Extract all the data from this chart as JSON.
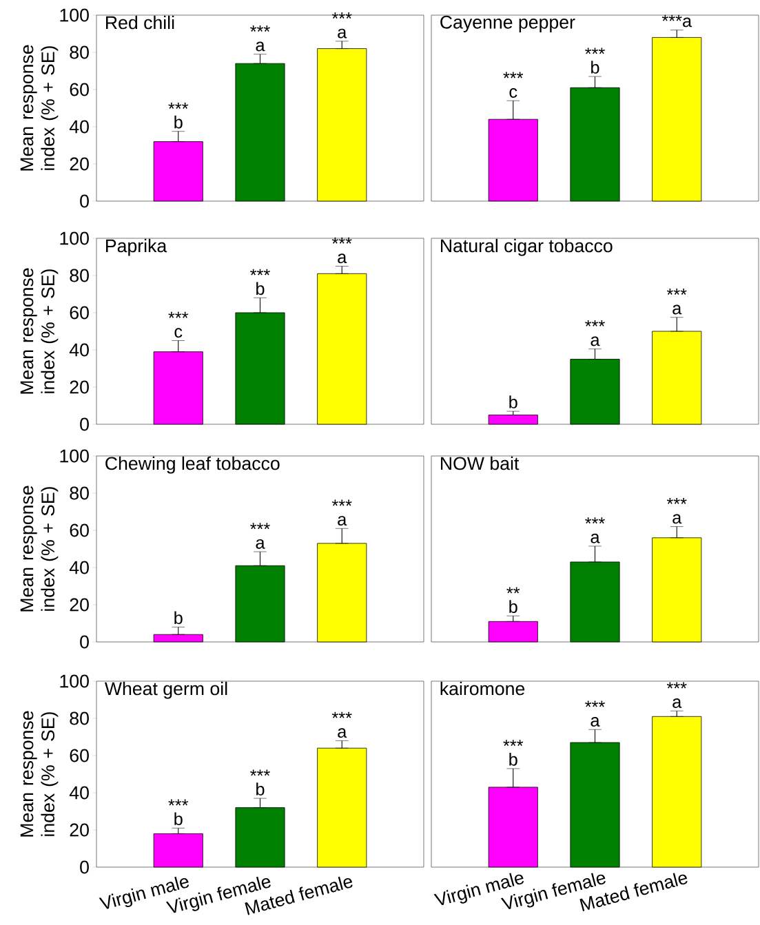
{
  "chart_data": [
    {
      "type": "bar",
      "title": "Red chili",
      "ylabel": "Mean response index (% + SE)",
      "categories": [
        "Virgin male",
        "Virgin female",
        "Mated female"
      ],
      "values": [
        32,
        74,
        82
      ],
      "colors": [
        "#ff00ff",
        "#008000",
        "#ffff00"
      ],
      "errors": [
        [
          32,
          37.5
        ],
        [
          74,
          79
        ],
        [
          82,
          86
        ]
      ],
      "ylim": [
        0,
        100
      ],
      "yticks": [
        0,
        20,
        40,
        60,
        80,
        100
      ],
      "tick_labels": "y",
      "annotations": [
        {
          "text": "b",
          "x": "Virgin male",
          "y": 37.5
        },
        {
          "text": "***",
          "x": "Virgin male",
          "y": 37.5
        },
        {
          "text": "a",
          "x": "Virgin female",
          "y": 79
        },
        {
          "text": "***",
          "x": "Virgin female",
          "y": 79
        },
        {
          "text": "a",
          "x": "Mated female",
          "y": 86
        },
        {
          "text": "***",
          "x": "Mated female",
          "y": 86
        }
      ]
    },
    {
      "type": "bar",
      "title": "Cayenne pepper",
      "categories": [
        "Virgin male",
        "Virgin female",
        "Mated female"
      ],
      "values": [
        44,
        61,
        88
      ],
      "colors": [
        "#ff00ff",
        "#008000",
        "#ffff00"
      ],
      "errors": [
        [
          44,
          54
        ],
        [
          61,
          67
        ],
        [
          88,
          92
        ]
      ],
      "ylim": [
        0,
        100
      ],
      "yticks": [
        0,
        20,
        40,
        60,
        80,
        100
      ],
      "tick_labels": false,
      "annotations": [
        {
          "text": "c",
          "x": "Virgin male",
          "y": 54
        },
        {
          "text": "***",
          "x": "Virgin male",
          "y": 54
        },
        {
          "text": "b",
          "x": "Virgin female",
          "y": 67
        },
        {
          "text": "***",
          "x": "Virgin female",
          "y": 67
        },
        {
          "text": "***a",
          "x": "Mated female",
          "y": 92
        }
      ]
    },
    {
      "type": "bar",
      "title": "Paprika",
      "ylabel": "Mean response index (% + SE)",
      "categories": [
        "Virgin male",
        "Virgin female",
        "Mated female"
      ],
      "values": [
        39,
        60,
        81
      ],
      "colors": [
        "#ff00ff",
        "#008000",
        "#ffff00"
      ],
      "errors": [
        [
          39,
          45
        ],
        [
          60,
          68
        ],
        [
          81,
          85
        ]
      ],
      "ylim": [
        0,
        100
      ],
      "yticks": [
        0,
        20,
        40,
        60,
        80,
        100
      ],
      "tick_labels": "y",
      "annotations": [
        {
          "text": "c",
          "x": "Virgin male",
          "y": 45
        },
        {
          "text": "***",
          "x": "Virgin male",
          "y": 45
        },
        {
          "text": "b",
          "x": "Virgin female",
          "y": 68
        },
        {
          "text": "***",
          "x": "Virgin female",
          "y": 68
        },
        {
          "text": "a",
          "x": "Mated female",
          "y": 85
        },
        {
          "text": "***",
          "x": "Mated female",
          "y": 85
        }
      ]
    },
    {
      "type": "bar",
      "title": "Natural cigar tobacco",
      "categories": [
        "Virgin male",
        "Virgin female",
        "Mated female"
      ],
      "values": [
        5,
        35,
        50
      ],
      "colors": [
        "#ff00ff",
        "#008000",
        "#ffff00"
      ],
      "errors": [
        [
          5,
          7
        ],
        [
          35,
          40.5
        ],
        [
          50,
          57.5
        ]
      ],
      "ylim": [
        0,
        100
      ],
      "yticks": [
        0,
        20,
        40,
        60,
        80,
        100
      ],
      "tick_labels": false,
      "annotations": [
        {
          "text": "b",
          "x": "Virgin male",
          "y": 7
        },
        {
          "text": "a",
          "x": "Virgin female",
          "y": 40.5
        },
        {
          "text": "***",
          "x": "Virgin female",
          "y": 40.5
        },
        {
          "text": "a",
          "x": "Mated female",
          "y": 57.5
        },
        {
          "text": "***",
          "x": "Mated female",
          "y": 57.5
        }
      ]
    },
    {
      "type": "bar",
      "title": "Chewing leaf tobacco",
      "ylabel": "Mean response index (% + SE)",
      "categories": [
        "Virgin male",
        "Virgin female",
        "Mated female"
      ],
      "values": [
        4,
        41,
        53
      ],
      "colors": [
        "#ff00ff",
        "#008000",
        "#ffff00"
      ],
      "errors": [
        [
          4,
          8
        ],
        [
          41,
          48.5
        ],
        [
          53,
          61
        ]
      ],
      "ylim": [
        0,
        100
      ],
      "yticks": [
        0,
        20,
        40,
        60,
        80,
        100
      ],
      "tick_labels": "y",
      "annotations": [
        {
          "text": "b",
          "x": "Virgin male",
          "y": 8
        },
        {
          "text": "a",
          "x": "Virgin female",
          "y": 48.5
        },
        {
          "text": "***",
          "x": "Virgin female",
          "y": 48.5
        },
        {
          "text": "a",
          "x": "Mated female",
          "y": 61
        },
        {
          "text": "***",
          "x": "Mated female",
          "y": 61
        }
      ]
    },
    {
      "type": "bar",
      "title": "NOW bait",
      "categories": [
        "Virgin male",
        "Virgin female",
        "Mated female"
      ],
      "values": [
        11,
        43,
        56
      ],
      "colors": [
        "#ff00ff",
        "#008000",
        "#ffff00"
      ],
      "errors": [
        [
          11,
          14
        ],
        [
          43,
          51.5
        ],
        [
          56,
          62
        ]
      ],
      "ylim": [
        0,
        100
      ],
      "yticks": [
        0,
        20,
        40,
        60,
        80,
        100
      ],
      "tick_labels": false,
      "annotations": [
        {
          "text": "b",
          "x": "Virgin male",
          "y": 14
        },
        {
          "text": "**",
          "x": "Virgin male",
          "y": 14
        },
        {
          "text": "a",
          "x": "Virgin female",
          "y": 51.5
        },
        {
          "text": "***",
          "x": "Virgin female",
          "y": 51.5
        },
        {
          "text": "a",
          "x": "Mated female",
          "y": 62
        },
        {
          "text": "***",
          "x": "Mated female",
          "y": 62
        }
      ]
    },
    {
      "type": "bar",
      "title": "Wheat germ oil",
      "ylabel": "Mean response index (% + SE)",
      "categories": [
        "Virgin male",
        "Virgin female",
        "Mated female"
      ],
      "values": [
        18,
        32,
        64
      ],
      "colors": [
        "#ff00ff",
        "#008000",
        "#ffff00"
      ],
      "errors": [
        [
          18,
          21
        ],
        [
          32,
          37
        ],
        [
          64,
          68
        ]
      ],
      "ylim": [
        0,
        100
      ],
      "yticks": [
        0,
        20,
        40,
        60,
        80,
        100
      ],
      "annotations": [
        {
          "text": "b",
          "x": "Virgin male",
          "y": 21
        },
        {
          "text": "***",
          "x": "Virgin male",
          "y": 21
        },
        {
          "text": "b",
          "x": "Virgin female",
          "y": 37
        },
        {
          "text": "***",
          "x": "Virgin female",
          "y": 37
        },
        {
          "text": "a",
          "x": "Mated female",
          "y": 68
        },
        {
          "text": "***",
          "x": "Mated female",
          "y": 68
        }
      ]
    },
    {
      "type": "bar",
      "title": "kairomone",
      "categories": [
        "Virgin male",
        "Virgin female",
        "Mated female"
      ],
      "values": [
        43,
        67,
        81
      ],
      "colors": [
        "#ff00ff",
        "#008000",
        "#ffff00"
      ],
      "errors": [
        [
          43,
          53
        ],
        [
          67,
          74
        ],
        [
          81,
          84
        ]
      ],
      "ylim": [
        0,
        100
      ],
      "yticks": [
        0,
        20,
        40,
        60,
        80,
        100
      ],
      "tick_labels": "x",
      "annotations": [
        {
          "text": "b",
          "x": "Virgin male",
          "y": 53
        },
        {
          "text": "***",
          "x": "Virgin male",
          "y": 53
        },
        {
          "text": "a",
          "x": "Virgin female",
          "y": 74
        },
        {
          "text": "***",
          "x": "Virgin female",
          "y": 74
        },
        {
          "text": "a",
          "x": "Mated female",
          "y": 84
        },
        {
          "text": "***",
          "x": "Mated female",
          "y": 84
        }
      ]
    }
  ]
}
